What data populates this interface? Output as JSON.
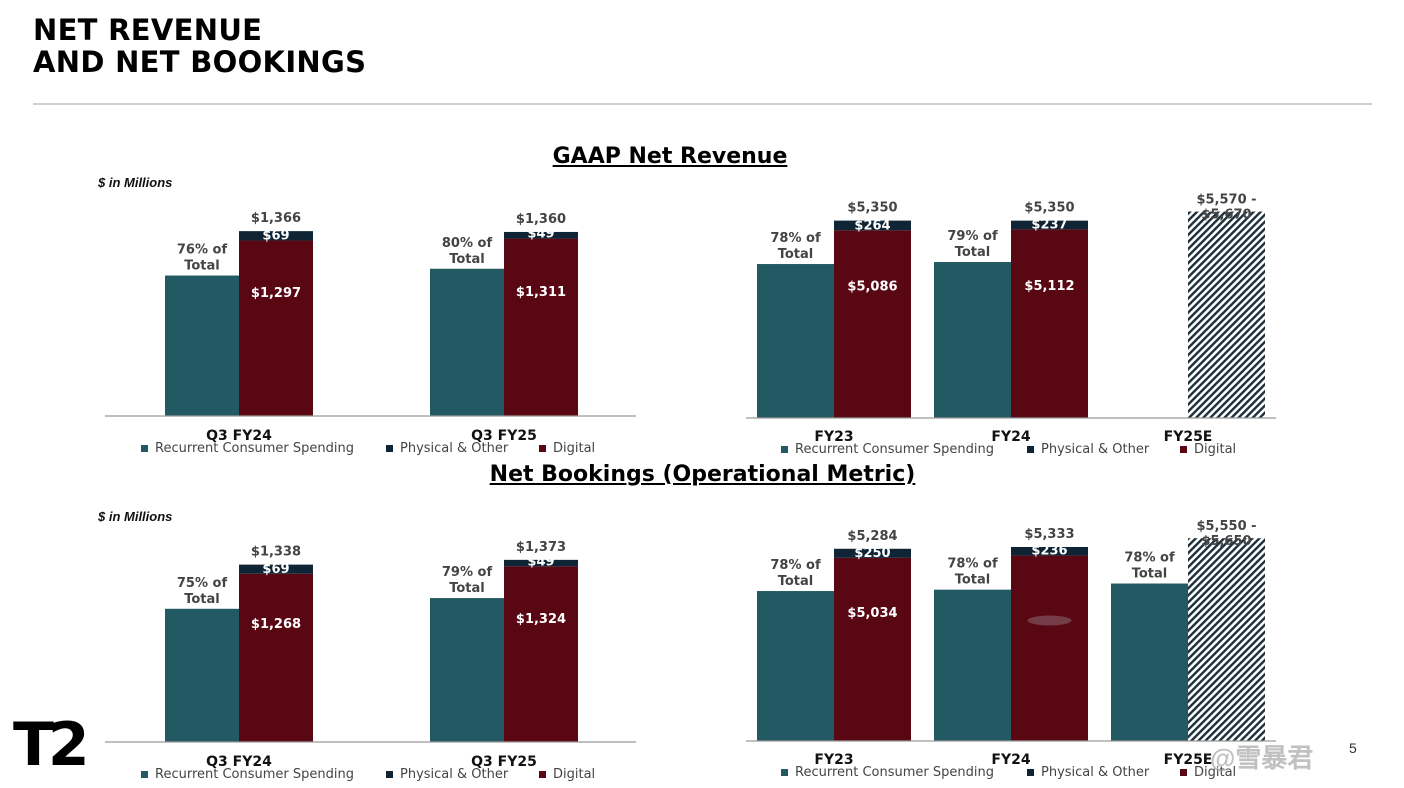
{
  "page": {
    "title_lines": [
      "NET REVENUE",
      "AND NET BOOKINGS"
    ],
    "page_number": "5",
    "logo_text": "T2",
    "watermark": "@雪暴君"
  },
  "sections": {
    "gaap": {
      "title": "GAAP Net Revenue",
      "units": "$ in Millions"
    },
    "bookings": {
      "title": "Net Bookings (Operational Metric)",
      "units": "$ in Millions"
    }
  },
  "colors": {
    "recurrent": "#235962",
    "physical": "#0f2535",
    "digital": "#5a0714"
  },
  "legend": [
    {
      "key": "recurrent",
      "label": "Recurrent Consumer Spending"
    },
    {
      "key": "physical",
      "label": "Physical & Other"
    },
    {
      "key": "digital",
      "label": "Digital"
    }
  ],
  "chart_data": [
    {
      "id": "gaap_quarterly",
      "type": "bar",
      "categories": [
        "Q3 FY24",
        "Q3 FY25"
      ],
      "ylim": [
        0,
        1500
      ],
      "groups": [
        {
          "category": "Q3 FY24",
          "recurrent": 1038,
          "recurrent_label": "76% of Total",
          "digital": 1297,
          "digital_label": "$1,297",
          "physical": 69,
          "physical_label": "$69",
          "total": 1366,
          "total_label": "$1,366"
        },
        {
          "category": "Q3 FY25",
          "recurrent": 1088,
          "recurrent_label": "80% of Total",
          "digital": 1311,
          "digital_label": "$1,311",
          "physical": 49,
          "physical_label": "$49",
          "total": 1360,
          "total_label": "$1,360"
        }
      ]
    },
    {
      "id": "gaap_annual",
      "type": "bar",
      "categories": [
        "FY23",
        "FY24",
        "FY25E"
      ],
      "ylim": [
        0,
        5800
      ],
      "groups": [
        {
          "category": "FY23",
          "recurrent": 4173,
          "recurrent_label": "78% of Total",
          "digital": 5086,
          "digital_label": "$5,086",
          "physical": 264,
          "physical_label": "$264",
          "total": 5350,
          "total_label": "$5,350"
        },
        {
          "category": "FY24",
          "recurrent": 4227,
          "recurrent_label": "79% of Total",
          "digital": 5112,
          "digital_label": "$5,112",
          "physical": 237,
          "physical_label": "$237",
          "total": 5350,
          "total_label": "$5,350"
        },
        {
          "category": "FY25E",
          "recurrent": null,
          "recurrent_label": "",
          "digital": null,
          "physical": null,
          "range_low": 5570,
          "range_high": 5670,
          "total_label_lines": [
            "$5,570 -",
            "$5,670"
          ]
        }
      ]
    },
    {
      "id": "bookings_quarterly",
      "type": "bar",
      "categories": [
        "Q3 FY24",
        "Q3 FY25"
      ],
      "ylim": [
        0,
        1500
      ],
      "groups": [
        {
          "category": "Q3 FY24",
          "recurrent": 1004,
          "recurrent_label": "75% of Total",
          "digital": 1268,
          "digital_label": "$1,268",
          "physical": 69,
          "physical_label": "$69",
          "total": 1338,
          "total_label": "$1,338"
        },
        {
          "category": "Q3 FY25",
          "recurrent": 1085,
          "recurrent_label": "79% of Total",
          "digital": 1324,
          "digital_label": "$1,324",
          "physical": 49,
          "physical_label": "$49",
          "total": 1373,
          "total_label": "$1,373"
        }
      ]
    },
    {
      "id": "bookings_annual",
      "type": "bar",
      "categories": [
        "FY23",
        "FY24",
        "FY25E"
      ],
      "ylim": [
        0,
        5800
      ],
      "groups": [
        {
          "category": "FY23",
          "recurrent": 4122,
          "recurrent_label": "78% of Total",
          "digital": 5034,
          "digital_label": "$5,034",
          "physical": 250,
          "physical_label": "$250",
          "total": 5284,
          "total_label": "$5,284"
        },
        {
          "category": "FY24",
          "recurrent": 4160,
          "recurrent_label": "78% of Total",
          "digital": 5097,
          "digital_label": "",
          "physical": 236,
          "physical_label": "$236",
          "total": 5333,
          "total_label": "$5,333"
        },
        {
          "category": "FY25E",
          "recurrent": 4329,
          "recurrent_label": "78% of Total",
          "digital": null,
          "physical": null,
          "range_low": 5550,
          "range_high": 5650,
          "total_label_lines": [
            "$5,550 -",
            "$5,650"
          ]
        }
      ]
    }
  ]
}
